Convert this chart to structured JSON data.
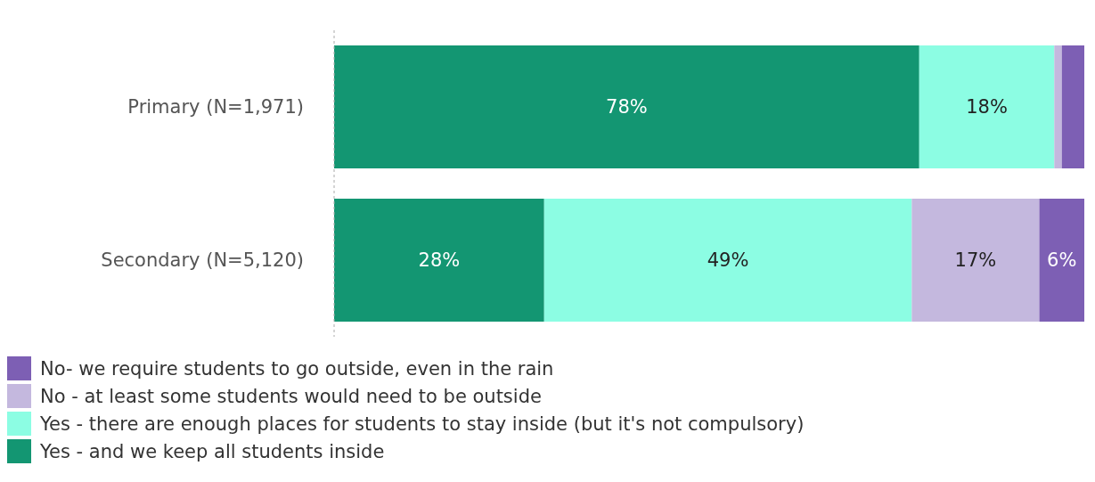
{
  "chart_data": {
    "type": "bar",
    "orientation": "horizontal",
    "stacked": true,
    "xlim": [
      0,
      100
    ],
    "legend": "bottom",
    "categories": [
      "Primary (N=1,971)",
      "Secondary (N=5,120)"
    ],
    "series": [
      {
        "name": "Yes - and we keep all students inside",
        "color": "#139672",
        "values": [
          78,
          28
        ],
        "value_labels": [
          "78%",
          "28%"
        ]
      },
      {
        "name": "Yes - there are enough places for students to stay inside (but it's not compulsory)",
        "color": "#8cfde3",
        "values": [
          18,
          49
        ],
        "value_labels": [
          "18%",
          "49%"
        ]
      },
      {
        "name": "No - at least some students would need to be outside",
        "color": "#c4b8de",
        "values": [
          1,
          17
        ],
        "value_labels": [
          null,
          "17%"
        ]
      },
      {
        "name": "No- we require students to go outside, even in the rain",
        "color": "#7d5fb4",
        "values": [
          3,
          6
        ],
        "value_labels": [
          null,
          "6%"
        ]
      }
    ]
  }
}
